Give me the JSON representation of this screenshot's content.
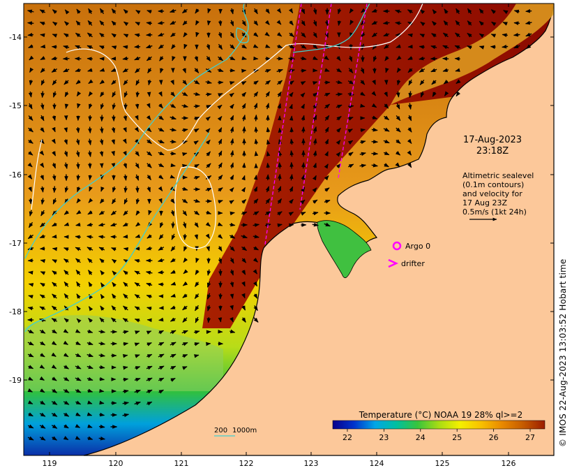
{
  "timestamp": {
    "date": "17-Aug-2023",
    "time": "23:18Z"
  },
  "altimetry_note": [
    "Altimetric sealevel",
    "(0.1m contours)",
    "and velocity for",
    "17 Aug 23Z",
    "0.5m/s (1kt 24h)"
  ],
  "legend_markers": [
    {
      "label": "Argo 0",
      "symbol": "circle",
      "color": "#ff00ff"
    },
    {
      "label": "drifter",
      "symbol": "chevron",
      "color": "#ff00ff"
    }
  ],
  "depth_legend": {
    "labels": [
      "200",
      "1000m"
    ],
    "color": "#40d0d0"
  },
  "colorbar": {
    "title": "Temperature (°C) NOAA 19 28% ql>=2",
    "ticks": [
      "22",
      "23",
      "24",
      "25",
      "26",
      "27"
    ],
    "range": [
      21.6,
      27.4
    ],
    "colors": [
      "#08008a",
      "#0033cc",
      "#00a6e6",
      "#00c0a0",
      "#38c43c",
      "#a8dc14",
      "#f4f000",
      "#f8c000",
      "#e88800",
      "#c45a00",
      "#9c1c00"
    ]
  },
  "axes": {
    "x_ticks": [
      "119",
      "120",
      "121",
      "122",
      "123",
      "124",
      "125",
      "126"
    ],
    "y_ticks": [
      "-14",
      "-15",
      "-16",
      "-17",
      "-18",
      "-19"
    ]
  },
  "colors": {
    "land": "#fcc89a",
    "coast": "#000000",
    "contour": "#ffffff",
    "isobath": "#40d0d0",
    "track": "#ff00ff"
  },
  "credit": "© IMOS 22-Aug-2023 13:03:52 Hobart time"
}
